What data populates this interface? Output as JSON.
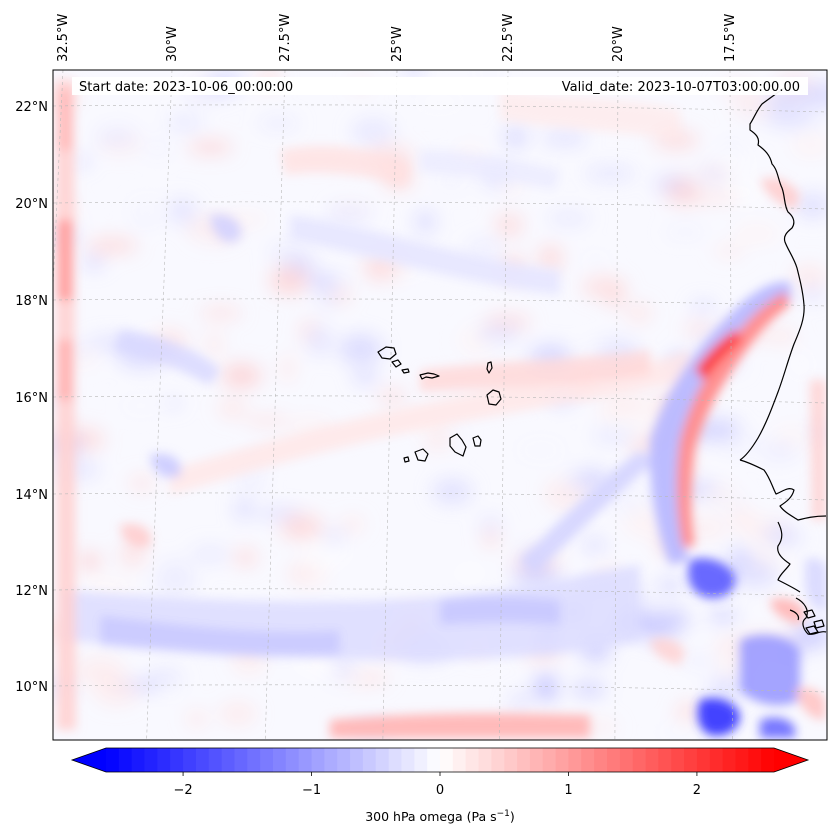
{
  "info": {
    "start_date": "Start date: 2023-10-06_00:00:00",
    "valid_date": "Valid_date: 2023-10-07T03:00:00.00"
  },
  "map": {
    "projection": "lambert-conformal",
    "gridlines": true,
    "lon_ticks": [
      {
        "label": "32.5°W",
        "value": -32.5
      },
      {
        "label": "30°W",
        "value": -30
      },
      {
        "label": "27.5°W",
        "value": -27.5
      },
      {
        "label": "25°W",
        "value": -25
      },
      {
        "label": "22.5°W",
        "value": -22.5
      },
      {
        "label": "20°W",
        "value": -20
      },
      {
        "label": "17.5°W",
        "value": -17.5
      }
    ],
    "lat_ticks": [
      {
        "label": "22°N",
        "value": 22
      },
      {
        "label": "20°N",
        "value": 20
      },
      {
        "label": "18°N",
        "value": 18
      },
      {
        "label": "16°N",
        "value": 16
      },
      {
        "label": "14°N",
        "value": 14
      },
      {
        "label": "12°N",
        "value": 12
      },
      {
        "label": "10°N",
        "value": 10
      }
    ],
    "features": [
      "cape-verde-islands",
      "west-africa-coastline"
    ]
  },
  "colorbar": {
    "label_main": "300 hPa omega (Pa s",
    "label_sup": "−1",
    "label_end": ")",
    "vmin": -2.6,
    "vmax": 2.6,
    "extend": "both",
    "colormap": "bwr",
    "ticks": [
      {
        "label": "−2",
        "value": -2
      },
      {
        "label": "−1",
        "value": -1
      },
      {
        "label": "0",
        "value": 0
      },
      {
        "label": "1",
        "value": 1
      },
      {
        "label": "2",
        "value": 2
      }
    ]
  },
  "colors": {
    "min": "#0000ff",
    "mid": "#ffffff",
    "max": "#ff0000",
    "coastline": "#000000"
  }
}
